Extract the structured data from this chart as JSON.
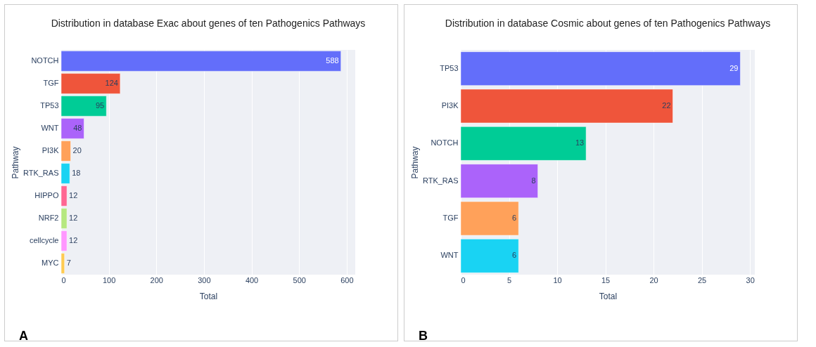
{
  "chart_data": [
    {
      "type": "bar",
      "orientation": "horizontal",
      "title": "Distribution in database Exac about genes of ten Pathogenics Pathways",
      "xlabel": "Total",
      "ylabel": "Pathway",
      "categories": [
        "NOTCH",
        "TGF",
        "TP53",
        "WNT",
        "PI3K",
        "RTK_RAS",
        "HIPPO",
        "NRF2",
        "cellcycle",
        "MYC"
      ],
      "values": [
        588,
        124,
        95,
        48,
        20,
        18,
        12,
        12,
        12,
        7
      ],
      "colors": [
        "#636efa",
        "#ef553b",
        "#00cc96",
        "#ab63fa",
        "#ffa15a",
        "#19d3f3",
        "#ff6692",
        "#b6e880",
        "#ff97ff",
        "#fecb52"
      ],
      "xlim": [
        0,
        618
      ],
      "xticks": [
        0,
        100,
        200,
        300,
        400,
        500,
        600
      ],
      "grid": "x",
      "data_labels": true,
      "annotations": [
        "A"
      ]
    },
    {
      "type": "bar",
      "orientation": "horizontal",
      "title": "Distribution in database Cosmic about genes of ten Pathogenics Pathways",
      "xlabel": "Total",
      "ylabel": "Pathway",
      "categories": [
        "TP53",
        "PI3K",
        "NOTCH",
        "RTK_RAS",
        "TGF",
        "WNT"
      ],
      "values": [
        29,
        22,
        13,
        8,
        6,
        6
      ],
      "colors": [
        "#636efa",
        "#ef553b",
        "#00cc96",
        "#ab63fa",
        "#ffa15a",
        "#19d3f3"
      ],
      "xlim": [
        0,
        30.5
      ],
      "xticks": [
        0,
        5,
        10,
        15,
        20,
        25,
        30
      ],
      "grid": "x",
      "data_labels": true,
      "annotations": [
        "B"
      ]
    }
  ]
}
